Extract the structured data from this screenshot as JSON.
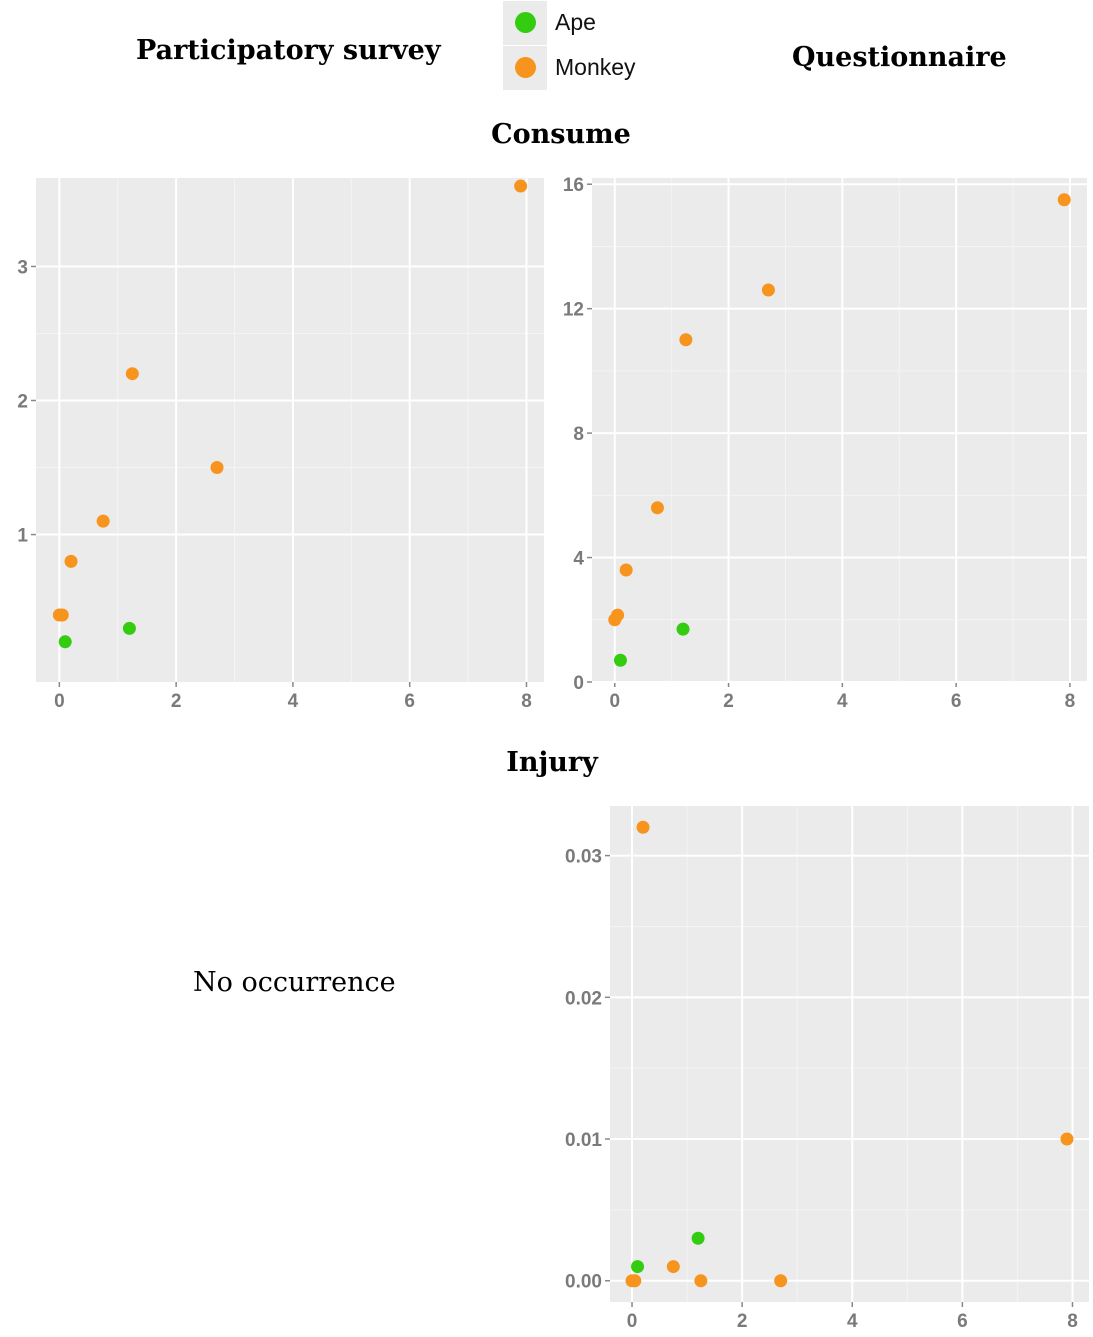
{
  "column_titles": {
    "left": "Participatory survey",
    "right": "Questionnaire"
  },
  "row_titles": {
    "top": "Consume",
    "bottom": "Injury"
  },
  "no_occurrence_text": "No occurrence",
  "legend": {
    "items": [
      {
        "label": "Ape",
        "color": "#33cc11"
      },
      {
        "label": "Monkey",
        "color": "#f7941d"
      }
    ]
  },
  "colors": {
    "panel_bg": "#ebebeb",
    "grid": "#ffffff",
    "tick_text": "#7a7a7a",
    "ape": "#33cc11",
    "monkey": "#f7941d"
  },
  "chart_data": [
    {
      "type": "scatter",
      "panel": "Consume - Participatory survey",
      "xlim": [
        -0.4,
        8.3
      ],
      "ylim": [
        -0.1,
        3.66
      ],
      "xticks": [
        0,
        2,
        4,
        6,
        8
      ],
      "yticks": [
        1,
        2,
        3
      ],
      "grid": true,
      "series": [
        {
          "name": "Ape",
          "x": [
            0.1,
            1.2
          ],
          "y": [
            0.2,
            0.3
          ]
        },
        {
          "name": "Monkey",
          "x": [
            0.0,
            0.05,
            0.2,
            0.75,
            1.25,
            2.7,
            7.9
          ],
          "y": [
            0.4,
            0.4,
            0.8,
            1.1,
            2.2,
            1.5,
            3.6
          ]
        }
      ]
    },
    {
      "type": "scatter",
      "panel": "Consume - Questionnaire",
      "xlim": [
        -0.4,
        8.3
      ],
      "ylim": [
        0,
        16.2
      ],
      "xticks": [
        0,
        2,
        4,
        6,
        8
      ],
      "yticks": [
        0,
        4,
        8,
        12,
        16
      ],
      "grid": true,
      "series": [
        {
          "name": "Ape",
          "x": [
            0.1,
            1.2
          ],
          "y": [
            0.7,
            1.7
          ]
        },
        {
          "name": "Monkey",
          "x": [
            0.0,
            0.05,
            0.2,
            0.75,
            1.25,
            2.7,
            7.9
          ],
          "y": [
            2.0,
            2.15,
            3.6,
            5.6,
            11.0,
            12.6,
            15.5
          ]
        }
      ]
    },
    {
      "type": "scatter",
      "panel": "Injury - Questionnaire",
      "xlim": [
        -0.4,
        8.3
      ],
      "ylim": [
        -0.0015,
        0.0335
      ],
      "xticks": [
        0,
        2,
        4,
        6,
        8
      ],
      "yticks": [
        0.0,
        0.01,
        0.02,
        0.03
      ],
      "ytick_labels": [
        "0.00",
        "0.01",
        "0.02",
        "0.03"
      ],
      "grid": true,
      "series": [
        {
          "name": "Ape",
          "x": [
            0.1,
            1.2
          ],
          "y": [
            0.001,
            0.003
          ]
        },
        {
          "name": "Monkey",
          "x": [
            0.0,
            0.05,
            0.2,
            0.75,
            1.25,
            2.7,
            7.9
          ],
          "y": [
            0.0,
            0.0,
            0.032,
            0.001,
            0.0,
            0.0,
            0.01
          ]
        }
      ]
    }
  ]
}
